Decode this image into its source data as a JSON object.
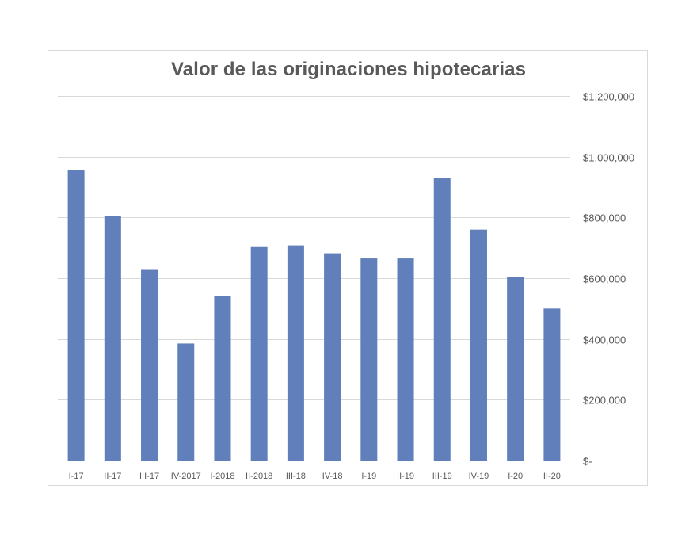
{
  "chart_data": {
    "type": "bar",
    "title": "Valor de las originaciones hipotecarias",
    "categories": [
      "I-17",
      "II-17",
      "III-17",
      "IV-2017",
      "I-2018",
      "II-2018",
      "III-18",
      "IV-18",
      "I-19",
      "II-19",
      "III-19",
      "IV-19",
      "I-20",
      "II-20"
    ],
    "values": [
      955000,
      805000,
      630000,
      385000,
      540000,
      705000,
      708000,
      682000,
      665000,
      665000,
      930000,
      760000,
      605000,
      500000
    ],
    "ylim": [
      0,
      1200000
    ],
    "y_ticks": [
      {
        "value": 0,
        "label": "$-"
      },
      {
        "value": 200000,
        "label": "$200,000"
      },
      {
        "value": 400000,
        "label": "$400,000"
      },
      {
        "value": 600000,
        "label": "$600,000"
      },
      {
        "value": 800000,
        "label": "$800,000"
      },
      {
        "value": 1000000,
        "label": "$1,000,000"
      },
      {
        "value": 1200000,
        "label": "$1,200,000"
      }
    ],
    "y_axis_side": "right",
    "grid": true,
    "legend": "none",
    "colors": {
      "bar": "#6180bb",
      "grid": "#d9d9d9",
      "text": "#595959"
    }
  }
}
